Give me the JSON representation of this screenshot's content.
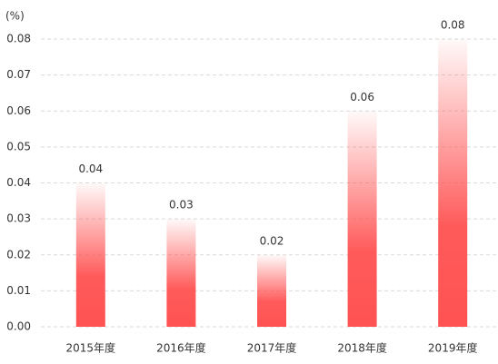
{
  "chart_data": {
    "type": "bar",
    "unit_label": "(%)",
    "categories": [
      "2015年度",
      "2016年度",
      "2017年度",
      "2018年度",
      "2019年度"
    ],
    "values": [
      0.04,
      0.03,
      0.02,
      0.06,
      0.08
    ],
    "color": "#ff5252",
    "ylim": [
      0,
      0.08
    ],
    "yticks": [
      {
        "value": 0,
        "label": "0.00"
      },
      {
        "value": 0.01,
        "label": "0.01"
      },
      {
        "value": 0.02,
        "label": "0.02"
      },
      {
        "value": 0.03,
        "label": "0.03"
      },
      {
        "value": 0.04,
        "label": "0.04"
      },
      {
        "value": 0.05,
        "label": "0.05"
      },
      {
        "value": 0.06,
        "label": "0.06"
      },
      {
        "value": 0.07,
        "label": "0.07"
      },
      {
        "value": 0.08,
        "label": "0.08"
      }
    ],
    "grid": true
  }
}
